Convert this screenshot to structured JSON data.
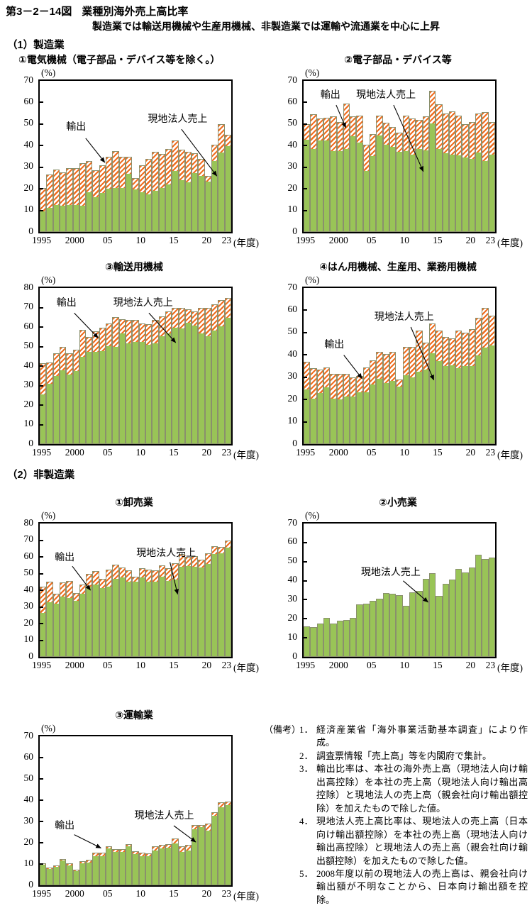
{
  "header": {
    "figure_no": "第3－2－14図",
    "title": "業種別海外売上高比率",
    "subtitle": "製造業では輸送用機械や生産用機械、非製造業では運輸や流通業を中心に上昇",
    "section_manufacturing": "（1）製造業",
    "section_nonmanufacturing": "（2）非製造業"
  },
  "legend": {
    "export_label": "輸出",
    "local_label": "現地法人売上"
  },
  "colors": {
    "local_green": "#99c457",
    "export_orange": "#ee6d1f",
    "axis": "#000000"
  },
  "chart_meta": {
    "y_axis_unit": "(%)",
    "x_axis_unit": "(年度)",
    "x_categories": [
      1995,
      1996,
      1997,
      1998,
      1999,
      2000,
      2001,
      2002,
      2003,
      2004,
      2005,
      2006,
      2007,
      2008,
      2009,
      2010,
      2011,
      2012,
      2013,
      2014,
      2015,
      2016,
      2017,
      2018,
      2019,
      2020,
      2021,
      2022,
      2023
    ],
    "x_ticks": [
      {
        "label": "1995",
        "index": 0
      },
      {
        "label": "2000",
        "index": 5
      },
      {
        "label": "05",
        "index": 10
      },
      {
        "label": "10",
        "index": 15
      },
      {
        "label": "15",
        "index": 20
      },
      {
        "label": "20",
        "index": 25
      },
      {
        "label": "23",
        "index": 28
      }
    ]
  },
  "chart_data": [
    {
      "key": "electric-machinery",
      "type": "bar",
      "stacked": true,
      "title": "①電気機械（電子部品・デバイス等を除く。）",
      "ymax": 70,
      "ylim": [
        0,
        70
      ],
      "yticks": [
        0,
        10,
        20,
        30,
        40,
        50,
        60,
        70
      ],
      "series": [
        {
          "name": "現地法人売上",
          "values": [
            9.5,
            11,
            12.5,
            12,
            12.5,
            12.5,
            12,
            18.5,
            16,
            18,
            20,
            20.5,
            20.5,
            27,
            20,
            18.5,
            17.5,
            19,
            20.5,
            22,
            28.5,
            24,
            23,
            27.5,
            26,
            23.5,
            33,
            37,
            40
          ]
        },
        {
          "name": "輸出",
          "values": [
            11,
            15.5,
            16.5,
            15.5,
            17,
            17,
            20,
            14.5,
            12.5,
            13,
            15,
            17,
            14.5,
            8,
            5,
            12.5,
            16.5,
            18,
            15.5,
            16.5,
            14,
            14,
            14,
            9,
            8,
            2.5,
            7.5,
            13,
            5
          ]
        }
      ],
      "annotations": [
        {
          "text": "輸出",
          "lx": 19,
          "ly": 30,
          "x1": 24,
          "y1": 38,
          "x2": 34,
          "y2": 54
        },
        {
          "text": "現地法人売上",
          "lx": 72,
          "ly": 25,
          "x1": 74,
          "y1": 32,
          "x2": 92.5,
          "y2": 63
        }
      ]
    },
    {
      "key": "electronic-parts-devices",
      "type": "bar",
      "stacked": true,
      "title": "②電子部品・デバイス等",
      "ymax": 70,
      "ylim": [
        0,
        70
      ],
      "yticks": [
        0,
        10,
        20,
        30,
        40,
        50,
        60,
        70
      ],
      "series": [
        {
          "name": "現地法人売上",
          "values": [
            43,
            38.5,
            42.5,
            42.5,
            37.5,
            37.5,
            38.5,
            44.5,
            41.5,
            28.5,
            35.5,
            45,
            40.5,
            39.5,
            37.5,
            37.5,
            36,
            38.5,
            38,
            50.5,
            38.5,
            36.5,
            36,
            35.5,
            34.5,
            34,
            37,
            33,
            36
          ]
        },
        {
          "name": "輸出",
          "values": [
            7,
            16,
            10,
            10.5,
            16,
            13.5,
            21,
            9,
            12.5,
            12,
            10,
            9,
            10,
            9,
            8.5,
            16.5,
            16.5,
            13.5,
            15.5,
            15,
            20.5,
            18.5,
            20,
            18.5,
            15.5,
            17,
            18,
            22.5,
            15
          ]
        }
      ],
      "annotations": [
        {
          "text": "輸出",
          "lx": 14,
          "ly": 9,
          "x1": 17,
          "y1": 16,
          "x2": 22,
          "y2": 31
        },
        {
          "text": "現地法人売上",
          "lx": 43,
          "ly": 9,
          "x1": 47,
          "y1": 16,
          "x2": 62.5,
          "y2": 60
        }
      ]
    },
    {
      "key": "transport-machinery",
      "type": "bar",
      "stacked": true,
      "title": "③輸送用機械",
      "ymax": 80,
      "ylim": [
        0,
        80
      ],
      "yticks": [
        0,
        10,
        20,
        30,
        40,
        50,
        60,
        70,
        80
      ],
      "series": [
        {
          "name": "現地法人売上",
          "values": [
            25.5,
            31,
            35,
            38,
            36,
            37.5,
            45,
            47.5,
            47.5,
            48,
            50.5,
            50,
            57,
            52,
            52.5,
            52.5,
            51,
            52,
            55.5,
            57,
            60,
            59.5,
            62.5,
            61,
            57,
            55.5,
            58.5,
            60.5,
            65
          ]
        },
        {
          "name": "輸出",
          "values": [
            16,
            11,
            11.5,
            12,
            10.5,
            11,
            13.5,
            7.5,
            10.5,
            11.5,
            11.5,
            15,
            7,
            11.5,
            11,
            9.5,
            10.5,
            11.5,
            10,
            11,
            10,
            10.5,
            6.5,
            7,
            13,
            14.5,
            13,
            13.5,
            10
          ]
        }
      ],
      "annotations": [
        {
          "text": "輸出",
          "lx": 14,
          "ly": 9,
          "x1": 18,
          "y1": 16,
          "x2": 30.5,
          "y2": 32
        },
        {
          "text": "現地法人売上",
          "lx": 54,
          "ly": 9,
          "x1": 57,
          "y1": 16,
          "x2": 71,
          "y2": 35
        }
      ]
    },
    {
      "key": "general-production-business-machinery",
      "type": "bar",
      "stacked": true,
      "title": "④はん用機械、生産用、業務用機械",
      "ymax": 70,
      "ylim": [
        0,
        70
      ],
      "yticks": [
        0,
        10,
        20,
        30,
        40,
        50,
        60,
        70
      ],
      "series": [
        {
          "name": "現地法人売上",
          "values": [
            24.5,
            20.5,
            23,
            25.5,
            20.5,
            20,
            21.5,
            21.5,
            23.5,
            23.5,
            27,
            29.5,
            27.5,
            28.5,
            26,
            31,
            30,
            32.5,
            33.5,
            41,
            37.5,
            35,
            35.5,
            34,
            35,
            35,
            40,
            43.5,
            44.5
          ]
        },
        {
          "name": "輸出",
          "values": [
            12.5,
            13.5,
            10.5,
            9,
            11,
            11.5,
            10,
            8.5,
            7,
            11,
            10.5,
            12,
            13,
            13,
            3,
            12.5,
            13.5,
            18.5,
            12,
            13,
            13.5,
            13,
            12,
            17,
            15,
            16.5,
            16.5,
            17.5,
            13
          ]
        }
      ],
      "annotations": [
        {
          "text": "輸出",
          "lx": 16,
          "ly": 36,
          "x1": 21,
          "y1": 43,
          "x2": 30.5,
          "y2": 58
        },
        {
          "text": "現地法人売上",
          "lx": 52.5,
          "ly": 18,
          "x1": 56,
          "y1": 25,
          "x2": 68,
          "y2": 59
        }
      ]
    },
    {
      "key": "wholesale",
      "type": "bar",
      "stacked": true,
      "title": "①卸売業",
      "ymax": 80,
      "ylim": [
        0,
        80
      ],
      "yticks": [
        0,
        10,
        20,
        30,
        40,
        50,
        60,
        70,
        80
      ],
      "series": [
        {
          "name": "現地法人売上",
          "values": [
            26.5,
            33,
            32,
            36.5,
            35.5,
            34,
            38,
            42.5,
            43.5,
            41.5,
            42.5,
            47,
            48,
            45.5,
            45.5,
            48,
            45.5,
            45.5,
            48.5,
            46,
            46.5,
            54.5,
            55,
            54.5,
            54,
            56,
            62,
            62.5,
            66
          ]
        },
        {
          "name": "輸出",
          "values": [
            15.5,
            12,
            6,
            8,
            10,
            4.5,
            5.5,
            7.5,
            8,
            5.5,
            10,
            8.5,
            5.5,
            6.5,
            2.5,
            5,
            7,
            6.5,
            6.5,
            7,
            9.5,
            7,
            5,
            6,
            4.5,
            6,
            4.5,
            3.5,
            4
          ]
        }
      ],
      "annotations": [
        {
          "text": "輸出",
          "lx": 13,
          "ly": 25,
          "x1": 17,
          "y1": 32,
          "x2": 26.5,
          "y2": 50
        },
        {
          "text": "現地法人売上",
          "lx": 66,
          "ly": 22,
          "x1": 68,
          "y1": 29,
          "x2": 72,
          "y2": 53
        }
      ]
    },
    {
      "key": "retail",
      "type": "bar",
      "stacked": true,
      "title": "②小売業",
      "ymax": 70,
      "ylim": [
        0,
        70
      ],
      "yticks": [
        0,
        10,
        20,
        30,
        40,
        50,
        60,
        70
      ],
      "series": [
        {
          "name": "現地法人売上",
          "values": [
            16,
            15.5,
            17.5,
            20.5,
            17.5,
            19,
            19.5,
            20.5,
            27.5,
            28,
            29.5,
            30.5,
            33.5,
            33,
            32.5,
            27,
            34,
            34.5,
            41,
            44,
            32,
            38.5,
            40.5,
            46,
            44.5,
            47,
            53.5,
            51.5,
            52
          ]
        }
      ],
      "annotations": [
        {
          "text": "現地法人売上",
          "lx": 45.5,
          "ly": 36,
          "x1": 52,
          "y1": 43,
          "x2": 65,
          "y2": 59
        }
      ]
    },
    {
      "key": "transportation",
      "type": "bar",
      "stacked": true,
      "title": "③運輸業",
      "ymax": 70,
      "ylim": [
        0,
        70
      ],
      "yticks": [
        0,
        10,
        20,
        30,
        40,
        50,
        60,
        70
      ],
      "series": [
        {
          "name": "現地法人売上",
          "values": [
            10,
            8,
            9,
            12,
            9.5,
            7,
            10.5,
            11,
            14,
            14,
            17.5,
            16,
            16,
            18.5,
            15,
            14,
            14,
            16.5,
            17.5,
            18,
            20,
            16,
            16.5,
            26.5,
            27.5,
            26,
            33,
            37,
            38
          ]
        },
        {
          "name": "輸出",
          "values": [
            0.5,
            0.5,
            0.5,
            0.5,
            1,
            0.5,
            1,
            1,
            1.5,
            1.5,
            1,
            1,
            1,
            1,
            1,
            1.5,
            1,
            2,
            1.5,
            1.5,
            2,
            2.5,
            2.5,
            2,
            1,
            3,
            1.5,
            2,
            1.5
          ]
        }
      ],
      "annotations": [
        {
          "text": "輸出",
          "lx": 13,
          "ly": 59.5,
          "x1": 18,
          "y1": 66,
          "x2": 32,
          "y2": 75
        },
        {
          "text": "現地法人売上",
          "lx": 65,
          "ly": 53,
          "x1": 70,
          "y1": 60,
          "x2": 81.5,
          "y2": 71
        }
      ]
    }
  ],
  "notes": {
    "label": "（備考）",
    "items": [
      {
        "no": "1．",
        "text": "経済産業省「海外事業活動基本調査」により作成。"
      },
      {
        "no": "2．",
        "text": "調査票情報「売上高」等を内閣府で集計。"
      },
      {
        "no": "3．",
        "text": "輸出比率は、本社の海外売上高（現地法人向け輸出高控除）を本社の売上高（現地法人向け輸出高控除）と現地法人の売上高（親会社向け輸出額控除）を加えたもので除した値。"
      },
      {
        "no": "4．",
        "text": "現地法人売上高比率は、現地法人の売上高（日本向け輸出額控除）を本社の売上高（現地法人向け輸出高控除）と現地法人の売上高（親会社向け輸出額控除）を加えたもので除した値。"
      },
      {
        "no": "5．",
        "text": "2008年度以前の現地法人の売上高は、親会社向け輸出額が不明なことから、日本向け輸出額を控除。"
      }
    ]
  }
}
